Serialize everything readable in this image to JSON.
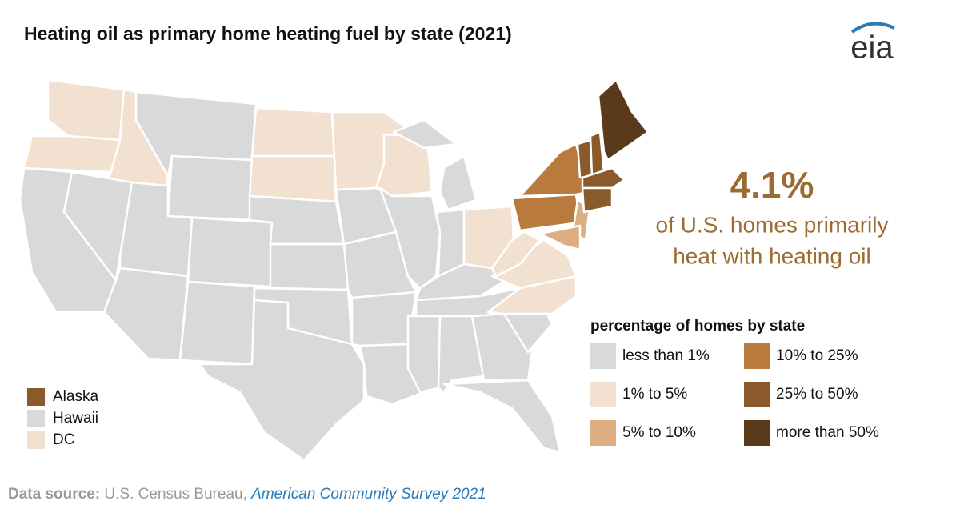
{
  "title": "Heating oil as primary home heating fuel by state (2021)",
  "logo": "eia",
  "callout": {
    "headline": "4.1%",
    "lines": [
      "of U.S. homes primarily",
      "heat with heating oil"
    ],
    "color": "#9c6b30"
  },
  "legend": {
    "title": "percentage of homes by state",
    "items": [
      {
        "label": "less than 1%",
        "color": "#d9d9d9"
      },
      {
        "label": "1% to 5%",
        "color": "#f2e1d0"
      },
      {
        "label": "5% to 10%",
        "color": "#dcae82"
      },
      {
        "label": "10% to 25%",
        "color": "#b87a3d"
      },
      {
        "label": "25% to 50%",
        "color": "#8b5a2b"
      },
      {
        "label": "more than 50%",
        "color": "#5a3a1a"
      }
    ]
  },
  "insets": [
    {
      "label": "Alaska",
      "color": "#8b5a2b"
    },
    {
      "label": "Hawaii",
      "color": "#d9d9d9"
    },
    {
      "label": "DC",
      "color": "#f2e1d0"
    }
  ],
  "source": {
    "prefix": "Data source:",
    "publisher": "U.S. Census Bureau,",
    "dataset": "American Community Survey 2021"
  }
}
